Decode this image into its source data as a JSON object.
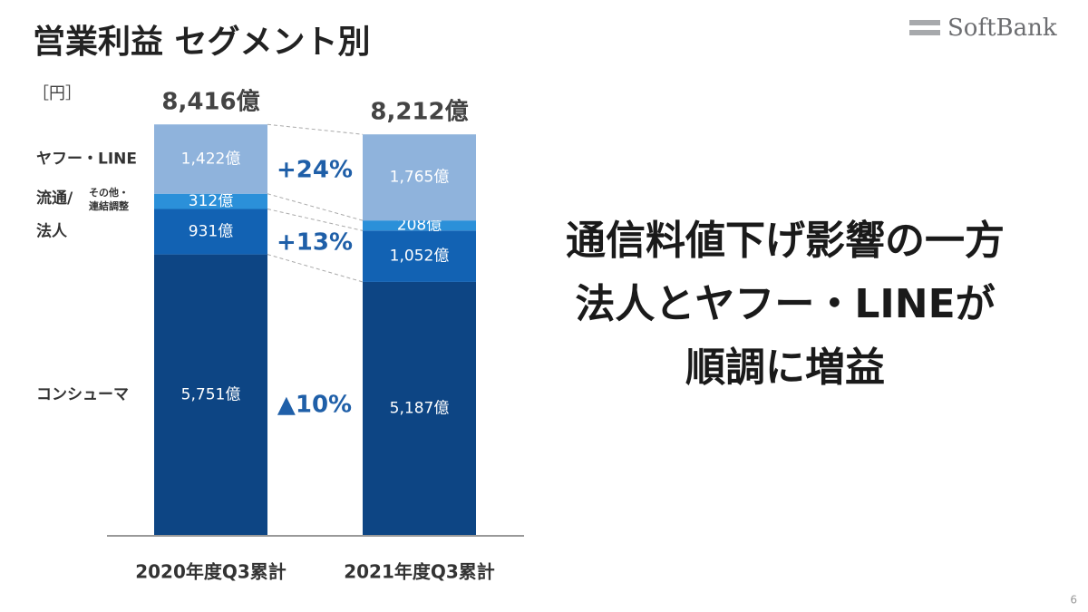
{
  "chart_data": {
    "type": "stacked_bar",
    "title": "営業利益 セグメント別",
    "unit_label": "［円］",
    "categories": [
      "2020年度Q3累計",
      "2021年度Q3累計"
    ],
    "series": [
      {
        "name": "コンシューマ",
        "color": "#0d4584",
        "values": [
          5751,
          5187
        ],
        "value_labels": [
          "5,751億",
          "5,187億"
        ]
      },
      {
        "name": "法人",
        "color": "#1262b3",
        "values": [
          931,
          1052
        ],
        "value_labels": [
          "931億",
          "1,052億"
        ]
      },
      {
        "name": "流通/",
        "name_sub_lines": [
          "その他・",
          "連結調整"
        ],
        "color": "#2b90d9",
        "values": [
          312,
          208
        ],
        "value_labels": [
          "312億",
          "208億"
        ]
      },
      {
        "name": "ヤフー・LINE",
        "color": "#8fb3dc",
        "values": [
          1422,
          1765
        ],
        "value_labels": [
          "1,422億",
          "1,765億"
        ]
      }
    ],
    "totals": {
      "values": [
        8416,
        8212
      ],
      "value_labels": [
        "8,416億",
        "8,212億"
      ]
    },
    "annotations": [
      "+24%",
      "+13%",
      "▲10%"
    ],
    "message_lines": [
      "通信料値下げ影響の一方",
      "法人とヤフー・LINEが",
      "順調に増益"
    ],
    "logo": "SoftBank",
    "page_number": "6"
  }
}
